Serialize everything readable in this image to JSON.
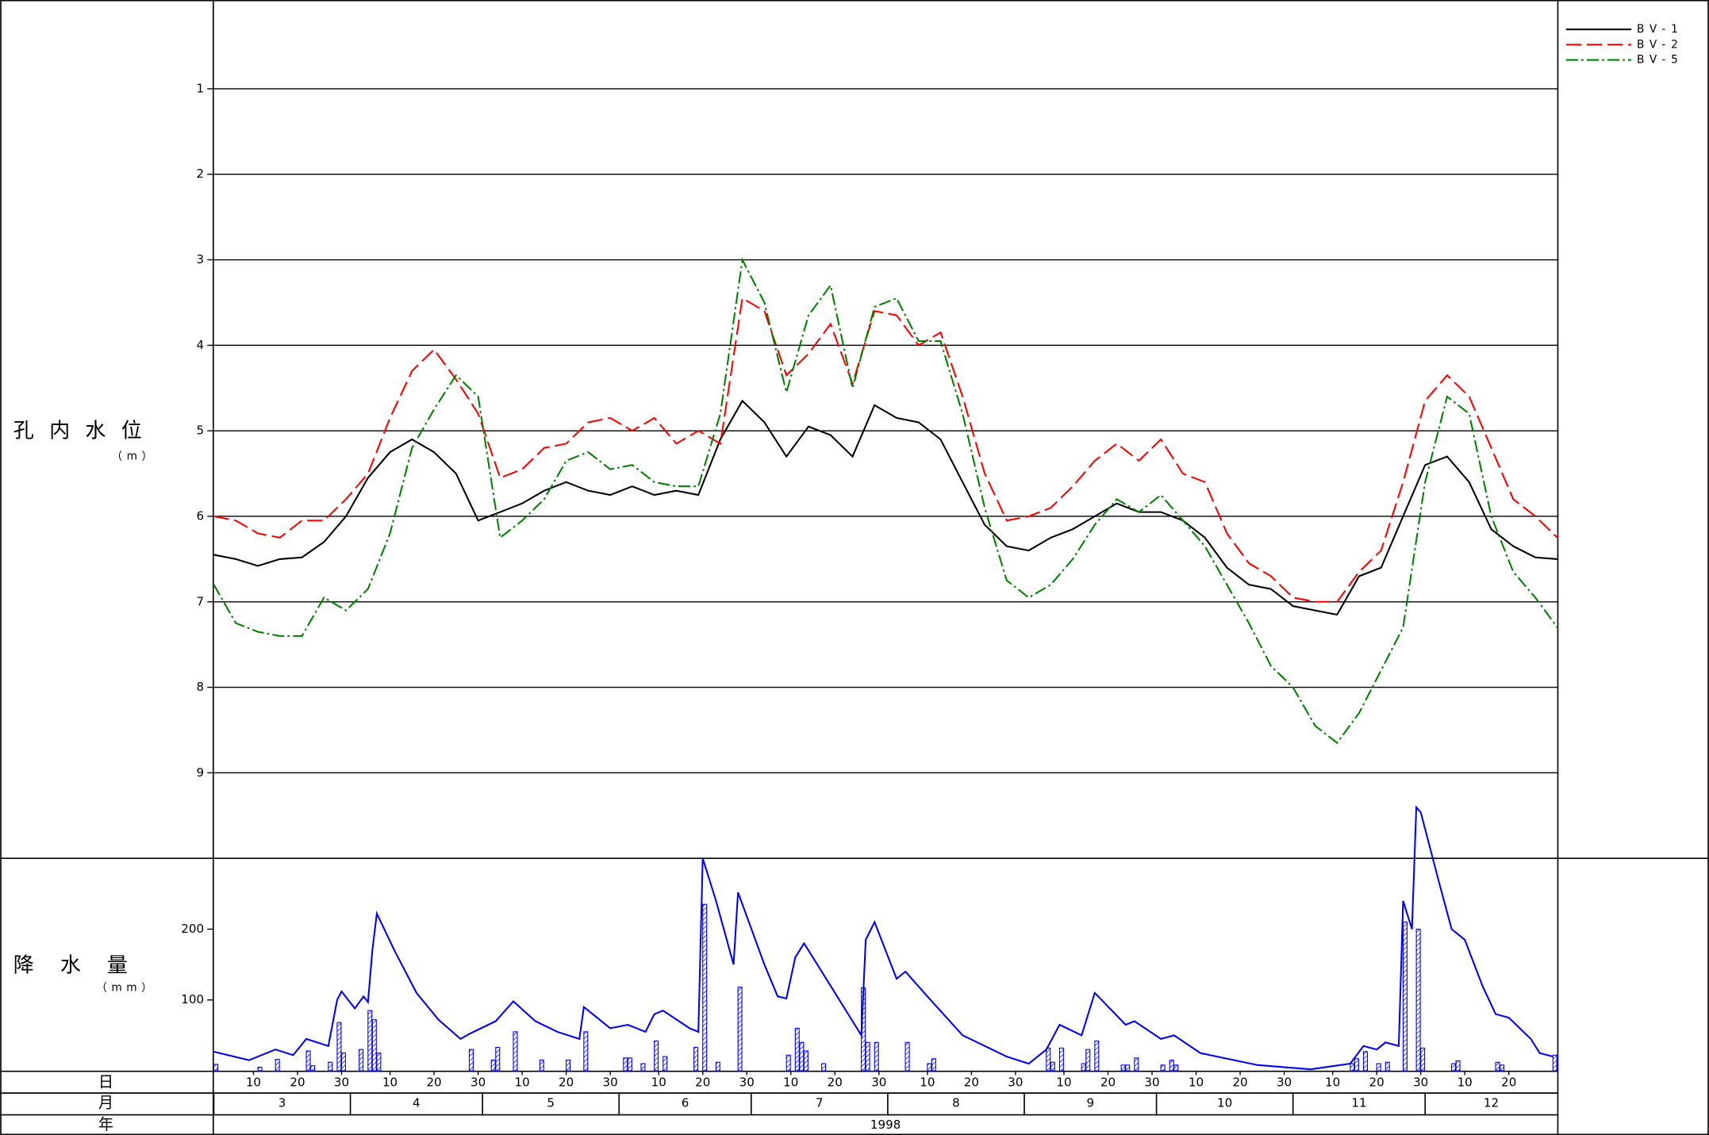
{
  "x_axis": {
    "xlim": [
      "1998-03-01",
      "1998-12-31"
    ],
    "rows": [
      "日",
      "月",
      "年"
    ],
    "day_ticks": [
      {
        "value": "1998-03-10",
        "label": "10"
      },
      {
        "value": "1998-03-20",
        "label": "20"
      },
      {
        "value": "1998-03-30",
        "label": "30"
      },
      {
        "value": "1998-04-10",
        "label": "10"
      },
      {
        "value": "1998-04-20",
        "label": "20"
      },
      {
        "value": "1998-04-30",
        "label": "30"
      },
      {
        "value": "1998-05-10",
        "label": "10"
      },
      {
        "value": "1998-05-20",
        "label": "20"
      },
      {
        "value": "1998-05-30",
        "label": "30"
      },
      {
        "value": "1998-06-10",
        "label": "10"
      },
      {
        "value": "1998-06-20",
        "label": "20"
      },
      {
        "value": "1998-06-30",
        "label": "30"
      },
      {
        "value": "1998-07-10",
        "label": "10"
      },
      {
        "value": "1998-07-20",
        "label": "20"
      },
      {
        "value": "1998-07-30",
        "label": "30"
      },
      {
        "value": "1998-08-10",
        "label": "10"
      },
      {
        "value": "1998-08-20",
        "label": "20"
      },
      {
        "value": "1998-08-30",
        "label": "30"
      },
      {
        "value": "1998-09-10",
        "label": "10"
      },
      {
        "value": "1998-09-20",
        "label": "20"
      },
      {
        "value": "1998-09-30",
        "label": "30"
      },
      {
        "value": "1998-10-10",
        "label": "10"
      },
      {
        "value": "1998-10-20",
        "label": "20"
      },
      {
        "value": "1998-10-30",
        "label": "30"
      },
      {
        "value": "1998-11-10",
        "label": "10"
      },
      {
        "value": "1998-11-20",
        "label": "20"
      },
      {
        "value": "1998-11-30",
        "label": "30"
      },
      {
        "value": "1998-12-10",
        "label": "10"
      },
      {
        "value": "1998-12-20",
        "label": "20"
      }
    ],
    "month_ticks": [
      {
        "value": "1998-03-01",
        "label": "3"
      },
      {
        "value": "1998-04-01",
        "label": "4"
      },
      {
        "value": "1998-05-01",
        "label": "5"
      },
      {
        "value": "1998-06-01",
        "label": "6"
      },
      {
        "value": "1998-07-01",
        "label": "7"
      },
      {
        "value": "1998-08-01",
        "label": "8"
      },
      {
        "value": "1998-09-01",
        "label": "9"
      },
      {
        "value": "1998-10-01",
        "label": "10"
      },
      {
        "value": "1998-11-01",
        "label": "11"
      },
      {
        "value": "1998-12-01",
        "label": "12"
      }
    ],
    "year": "1998"
  },
  "chart_data": [
    {
      "type": "line",
      "ylabel": "孔内水位",
      "yunit": "（m）",
      "ylim": [
        0,
        10
      ],
      "yticks": [
        1,
        2,
        3,
        4,
        5,
        6,
        7,
        8,
        9
      ],
      "y_inverted": true,
      "grid": true,
      "legend": "upper right",
      "x": [
        "1998-03-01",
        "1998-03-06",
        "1998-03-11",
        "1998-03-16",
        "1998-03-21",
        "1998-03-26",
        "1998-03-31",
        "1998-04-05",
        "1998-04-10",
        "1998-04-15",
        "1998-04-20",
        "1998-04-25",
        "1998-04-30",
        "1998-05-05",
        "1998-05-10",
        "1998-05-15",
        "1998-05-20",
        "1998-05-25",
        "1998-05-30",
        "1998-06-04",
        "1998-06-09",
        "1998-06-14",
        "1998-06-19",
        "1998-06-24",
        "1998-06-29",
        "1998-07-04",
        "1998-07-09",
        "1998-07-14",
        "1998-07-19",
        "1998-07-24",
        "1998-07-29",
        "1998-08-03",
        "1998-08-08",
        "1998-08-13",
        "1998-08-18",
        "1998-08-23",
        "1998-08-28",
        "1998-09-02",
        "1998-09-07",
        "1998-09-12",
        "1998-09-17",
        "1998-09-22",
        "1998-09-27",
        "1998-10-02",
        "1998-10-07",
        "1998-10-12",
        "1998-10-17",
        "1998-10-22",
        "1998-10-27",
        "1998-11-01",
        "1998-11-06",
        "1998-11-11",
        "1998-11-16",
        "1998-11-21",
        "1998-11-26",
        "1998-12-01",
        "1998-12-06",
        "1998-12-11",
        "1998-12-16",
        "1998-12-21",
        "1998-12-26",
        "1998-12-31"
      ],
      "series": [
        {
          "name": "BV-1",
          "color": "#000000",
          "linestyle": "solid",
          "values": [
            6.45,
            6.5,
            6.58,
            6.5,
            6.48,
            6.3,
            6.0,
            5.55,
            5.25,
            5.1,
            5.25,
            5.5,
            6.05,
            5.95,
            5.85,
            5.7,
            5.6,
            5.7,
            5.75,
            5.65,
            5.75,
            5.7,
            5.75,
            5.1,
            4.65,
            4.9,
            5.3,
            4.95,
            5.05,
            5.3,
            4.7,
            4.85,
            4.9,
            5.1,
            5.6,
            6.1,
            6.35,
            6.4,
            6.25,
            6.15,
            6.0,
            5.85,
            5.95,
            5.95,
            6.05,
            6.25,
            6.6,
            6.8,
            6.85,
            7.05,
            7.1,
            7.15,
            6.7,
            6.6,
            6.0,
            5.4,
            5.3,
            5.6,
            6.15,
            6.35,
            6.48,
            6.5
          ]
        },
        {
          "name": "BV-2",
          "color": "#ff0000",
          "linestyle": "dashed",
          "values": [
            6.0,
            6.05,
            6.2,
            6.25,
            6.05,
            6.05,
            5.8,
            5.5,
            4.85,
            4.3,
            4.05,
            4.4,
            4.8,
            5.55,
            5.45,
            5.2,
            5.15,
            4.9,
            4.85,
            5.0,
            4.85,
            5.15,
            5.0,
            5.15,
            3.45,
            3.6,
            4.35,
            4.1,
            3.75,
            4.45,
            3.6,
            3.65,
            4.0,
            3.85,
            4.6,
            5.5,
            6.05,
            6.0,
            5.9,
            5.65,
            5.35,
            5.15,
            5.35,
            5.1,
            5.5,
            5.6,
            6.2,
            6.55,
            6.7,
            6.95,
            7.0,
            7.0,
            6.65,
            6.4,
            5.6,
            4.65,
            4.35,
            4.6,
            5.2,
            5.8,
            6.0,
            6.25
          ]
        },
        {
          "name": "BV-5",
          "color": "#008000",
          "linestyle": "dashdot",
          "values": [
            6.8,
            7.25,
            7.35,
            7.4,
            7.4,
            6.95,
            7.1,
            6.85,
            6.2,
            5.2,
            4.75,
            4.35,
            4.6,
            6.25,
            6.05,
            5.8,
            5.35,
            5.25,
            5.45,
            5.4,
            5.6,
            5.65,
            5.65,
            4.8,
            3.0,
            3.5,
            4.55,
            3.65,
            3.3,
            4.5,
            3.55,
            3.45,
            3.95,
            3.95,
            4.8,
            5.9,
            6.75,
            6.95,
            6.8,
            6.5,
            6.1,
            5.8,
            5.95,
            5.75,
            6.05,
            6.35,
            6.8,
            7.25,
            7.75,
            8.0,
            8.45,
            8.65,
            8.3,
            7.8,
            7.3,
            5.6,
            4.6,
            4.8,
            6.0,
            6.65,
            6.95,
            7.3
          ]
        }
      ]
    },
    {
      "type": "bar",
      "ylabel": "降水量",
      "yunit": "（mm）",
      "ylim": [
        0,
        300
      ],
      "yticks": [
        100,
        200
      ],
      "series": [
        {
          "type": "bar",
          "color": "#0000ff",
          "x": [
            "1998-03-01",
            "1998-03-11",
            "1998-03-15",
            "1998-03-22",
            "1998-03-23",
            "1998-03-27",
            "1998-03-29",
            "1998-03-30",
            "1998-04-03",
            "1998-04-05",
            "1998-04-06",
            "1998-04-07",
            "1998-04-28",
            "1998-05-03",
            "1998-05-04",
            "1998-05-08",
            "1998-05-14",
            "1998-05-20",
            "1998-05-24",
            "1998-06-02",
            "1998-06-03",
            "1998-06-06",
            "1998-06-09",
            "1998-06-11",
            "1998-06-18",
            "1998-06-20",
            "1998-06-23",
            "1998-06-28",
            "1998-07-09",
            "1998-07-11",
            "1998-07-12",
            "1998-07-13",
            "1998-07-17",
            "1998-07-26",
            "1998-07-27",
            "1998-07-29",
            "1998-08-05",
            "1998-08-10",
            "1998-08-11",
            "1998-09-06",
            "1998-09-07",
            "1998-09-09",
            "1998-09-14",
            "1998-09-15",
            "1998-09-17",
            "1998-09-23",
            "1998-09-24",
            "1998-09-26",
            "1998-10-02",
            "1998-10-04",
            "1998-10-05",
            "1998-11-14",
            "1998-11-15",
            "1998-11-17",
            "1998-11-20",
            "1998-11-22",
            "1998-11-26",
            "1998-11-29",
            "1998-11-30",
            "1998-12-07",
            "1998-12-08",
            "1998-12-17",
            "1998-12-18",
            "1998-12-30"
          ],
          "values": [
            9,
            5,
            16,
            28,
            7,
            12,
            68,
            25,
            30,
            85,
            72,
            25,
            30,
            15,
            33,
            55,
            15,
            15,
            55,
            18,
            18,
            10,
            42,
            20,
            33,
            235,
            12,
            118,
            22,
            60,
            40,
            28,
            10,
            117,
            40,
            40,
            40,
            10,
            17,
            32,
            12,
            32,
            10,
            30,
            42,
            8,
            8,
            18,
            8,
            15,
            8,
            10,
            17,
            27,
            10,
            12,
            210,
            200,
            32,
            10,
            14,
            12,
            8,
            22
          ]
        },
        {
          "type": "line",
          "color": "#0000ff",
          "x": [
            "1998-03-01",
            "1998-03-09",
            "1998-03-15",
            "1998-03-19",
            "1998-03-22",
            "1998-03-27",
            "1998-03-29",
            "1998-03-30",
            "1998-04-02",
            "1998-04-04",
            "1998-04-05",
            "1998-04-06",
            "1998-04-07",
            "1998-04-11",
            "1998-04-16",
            "1998-04-21",
            "1998-04-26",
            "1998-04-28",
            "1998-05-04",
            "1998-05-08",
            "1998-05-13",
            "1998-05-18",
            "1998-05-23",
            "1998-05-24",
            "1998-05-30",
            "1998-06-03",
            "1998-06-07",
            "1998-06-09",
            "1998-06-11",
            "1998-06-17",
            "1998-06-19",
            "1998-06-20",
            "1998-06-23",
            "1998-06-27",
            "1998-06-28",
            "1998-07-04",
            "1998-07-07",
            "1998-07-09",
            "1998-07-11",
            "1998-07-13",
            "1998-07-19",
            "1998-07-24",
            "1998-07-26",
            "1998-07-27",
            "1998-07-29",
            "1998-08-03",
            "1998-08-05",
            "1998-08-10",
            "1998-08-18",
            "1998-08-28",
            "1998-09-02",
            "1998-09-06",
            "1998-09-09",
            "1998-09-14",
            "1998-09-17",
            "1998-09-24",
            "1998-09-26",
            "1998-10-02",
            "1998-10-05",
            "1998-10-11",
            "1998-10-24",
            "1998-11-05",
            "1998-11-14",
            "1998-11-17",
            "1998-11-20",
            "1998-11-22",
            "1998-11-25",
            "1998-11-26",
            "1998-11-28",
            "1998-11-29",
            "1998-11-30",
            "1998-12-04",
            "1998-12-07",
            "1998-12-10",
            "1998-12-14",
            "1998-12-17",
            "1998-12-20",
            "1998-12-25",
            "1998-12-27",
            "1998-12-30"
          ],
          "values": [
            27,
            15,
            30,
            22,
            45,
            35,
            100,
            112,
            88,
            105,
            97,
            170,
            222,
            170,
            110,
            72,
            45,
            52,
            70,
            98,
            70,
            55,
            45,
            90,
            60,
            65,
            55,
            80,
            85,
            60,
            55,
            300,
            240,
            150,
            252,
            150,
            105,
            102,
            160,
            180,
            120,
            70,
            50,
            185,
            210,
            130,
            140,
            105,
            50,
            20,
            10,
            30,
            65,
            50,
            110,
            65,
            70,
            45,
            50,
            25,
            8,
            2,
            10,
            35,
            30,
            40,
            35,
            240,
            200,
            372,
            365,
            270,
            200,
            185,
            120,
            80,
            75,
            45,
            25,
            20
          ]
        }
      ]
    }
  ]
}
